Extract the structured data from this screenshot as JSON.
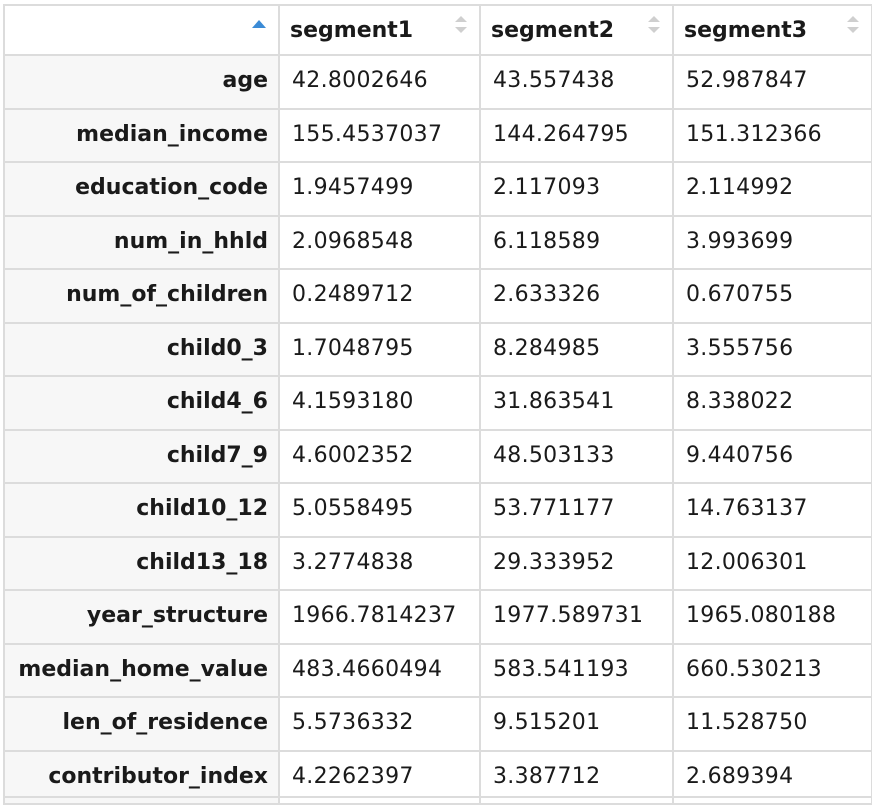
{
  "table": {
    "headers": [
      "",
      "segment1",
      "segment2",
      "segment3"
    ],
    "rows": [
      {
        "label": "age",
        "values": [
          "42.8002646",
          "43.557438",
          "52.987847"
        ]
      },
      {
        "label": "median_income",
        "values": [
          "155.4537037",
          "144.264795",
          "151.312366"
        ]
      },
      {
        "label": "education_code",
        "values": [
          "1.9457499",
          "2.117093",
          "2.114992"
        ]
      },
      {
        "label": "num_in_hhld",
        "values": [
          "2.0968548",
          "6.118589",
          "3.993699"
        ]
      },
      {
        "label": "num_of_children",
        "values": [
          "0.2489712",
          "2.633326",
          "0.670755"
        ]
      },
      {
        "label": "child0_3",
        "values": [
          "1.7048795",
          "8.284985",
          "3.555756"
        ]
      },
      {
        "label": "child4_6",
        "values": [
          "4.1593180",
          "31.863541",
          "8.338022"
        ]
      },
      {
        "label": "child7_9",
        "values": [
          "4.6002352",
          "48.503133",
          "9.440756"
        ]
      },
      {
        "label": "child10_12",
        "values": [
          "5.0558495",
          "53.771177",
          "14.763137"
        ]
      },
      {
        "label": "child13_18",
        "values": [
          "3.2774838",
          "29.333952",
          "12.006301"
        ]
      },
      {
        "label": "year_structure",
        "values": [
          "1966.7814237",
          "1977.589731",
          "1965.080188"
        ]
      },
      {
        "label": "median_home_value",
        "values": [
          "483.4660494",
          "583.541193",
          "660.530213"
        ]
      },
      {
        "label": "len_of_residence",
        "values": [
          "5.5736332",
          "9.515201",
          "11.528750"
        ]
      },
      {
        "label": "contributor_index",
        "values": [
          "4.2262397",
          "3.387712",
          "2.689394"
        ]
      }
    ]
  },
  "icons": {
    "active_sort": "sort-ascending-icon",
    "inactive_sort": "sort-both-icon"
  },
  "colors": {
    "accent": "#3b8bd6",
    "row_header_bg": "#f7f7f7",
    "border": "#dcdcdc"
  }
}
